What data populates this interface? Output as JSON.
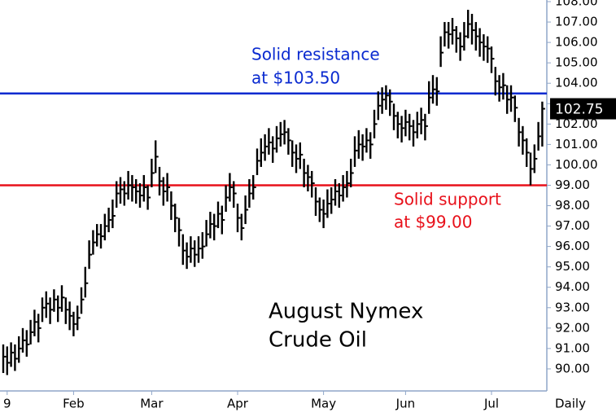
{
  "chart_data": {
    "type": "ohlc",
    "title": "August Nymex",
    "subtitle": "Crude Oil",
    "x_axis_label": "Daily",
    "ylim": [
      88.92,
      108.08
    ],
    "yticks": [
      {
        "value": 90,
        "label": "90.00"
      },
      {
        "value": 91,
        "label": "91.00"
      },
      {
        "value": 92,
        "label": "92.00"
      },
      {
        "value": 93,
        "label": "93.00"
      },
      {
        "value": 94,
        "label": "94.00"
      },
      {
        "value": 95,
        "label": "95.00"
      },
      {
        "value": 96,
        "label": "96.00"
      },
      {
        "value": 97,
        "label": "97.00"
      },
      {
        "value": 98,
        "label": "98.00"
      },
      {
        "value": 99,
        "label": "99.00"
      },
      {
        "value": 100,
        "label": "100.00"
      },
      {
        "value": 101,
        "label": "101.00"
      },
      {
        "value": 102,
        "label": "102.00"
      },
      {
        "value": 103,
        "label": "103.00"
      },
      {
        "value": 104,
        "label": "104.00"
      },
      {
        "value": 105,
        "label": "105.00"
      },
      {
        "value": 106,
        "label": "106.00"
      },
      {
        "value": 107,
        "label": "107.00"
      },
      {
        "value": 108,
        "label": "108.00"
      }
    ],
    "xticks": [
      {
        "value": 1,
        "label": "9"
      },
      {
        "value": 18,
        "label": "Feb"
      },
      {
        "value": 38,
        "label": "Mar"
      },
      {
        "value": 60,
        "label": "Apr"
      },
      {
        "value": 82,
        "label": "May"
      },
      {
        "value": 103,
        "label": "Jun"
      },
      {
        "value": 125,
        "label": "Jul"
      }
    ],
    "color": "#000000",
    "high": [
      91.2,
      91.1,
      91.3,
      91.2,
      91.6,
      92.0,
      91.9,
      92.4,
      92.9,
      92.7,
      93.5,
      93.8,
      93.5,
      93.9,
      93.6,
      94.1,
      93.5,
      93.3,
      92.8,
      93.1,
      94.0,
      95.0,
      96.3,
      96.8,
      97.1,
      97.1,
      97.6,
      97.9,
      98.3,
      99.2,
      99.4,
      99.2,
      99.7,
      99.5,
      99.3,
      99.1,
      99.5,
      99.0,
      100.3,
      101.2,
      99.9,
      99.4,
      99.6,
      98.7,
      98.1,
      97.4,
      96.6,
      96.2,
      96.5,
      96.3,
      96.5,
      96.7,
      97.3,
      97.7,
      97.6,
      98.2,
      98.0,
      99.0,
      99.6,
      99.2,
      98.1,
      97.6,
      98.5,
      99.3,
      99.5,
      100.8,
      101.3,
      101.5,
      101.8,
      101.4,
      101.9,
      102.1,
      102.2,
      101.8,
      101.2,
      101.0,
      101.1,
      100.3,
      100.0,
      99.7,
      98.9,
      98.4,
      98.3,
      98.8,
      98.9,
      99.3,
      99.1,
      99.5,
      99.7,
      100.3,
      101.4,
      101.7,
      101.5,
      101.8,
      101.6,
      102.7,
      103.6,
      103.8,
      103.9,
      103.7,
      103.0,
      102.6,
      102.4,
      102.7,
      102.5,
      102.2,
      102.6,
      102.8,
      102.5,
      104.1,
      104.4,
      104.3,
      106.3,
      107.0,
      107.0,
      107.2,
      106.8,
      106.5,
      107.0,
      107.6,
      107.4,
      107.0,
      106.7,
      106.4,
      106.3,
      105.8,
      104.8,
      104.4,
      104.5,
      103.9,
      103.9,
      103.4,
      102.3,
      101.9,
      101.3,
      100.6,
      101.0,
      102.1,
      103.1
    ],
    "low": [
      89.8,
      89.7,
      90.1,
      89.9,
      90.3,
      90.8,
      90.6,
      91.2,
      91.6,
      91.3,
      92.3,
      92.5,
      92.2,
      92.8,
      92.3,
      92.8,
      92.2,
      91.9,
      91.6,
      91.9,
      92.7,
      93.5,
      94.9,
      95.6,
      96.0,
      95.9,
      96.3,
      96.7,
      96.9,
      97.9,
      98.1,
      98.0,
      98.3,
      98.2,
      98.1,
      97.9,
      98.2,
      97.8,
      98.9,
      99.6,
      98.5,
      98.0,
      98.2,
      97.3,
      96.7,
      96.0,
      95.1,
      94.9,
      95.2,
      95.0,
      95.2,
      95.4,
      96.0,
      96.4,
      96.3,
      96.9,
      96.6,
      97.7,
      98.2,
      97.9,
      96.7,
      96.3,
      97.1,
      97.9,
      98.3,
      99.5,
      99.9,
      100.2,
      100.5,
      100.1,
      100.6,
      100.9,
      101.0,
      100.5,
      99.9,
      99.6,
      99.8,
      98.9,
      98.7,
      98.4,
      97.5,
      97.2,
      96.9,
      97.4,
      97.6,
      98.0,
      97.9,
      98.2,
      98.4,
      98.9,
      99.9,
      100.3,
      100.2,
      100.6,
      100.3,
      101.3,
      102.2,
      102.5,
      102.7,
      102.4,
      101.7,
      101.3,
      101.1,
      101.4,
      101.2,
      100.9,
      101.3,
      101.5,
      101.2,
      102.5,
      103.0,
      102.9,
      104.8,
      105.8,
      105.7,
      105.9,
      105.5,
      105.1,
      105.6,
      106.2,
      105.9,
      105.6,
      105.3,
      105.1,
      105.0,
      104.5,
      103.4,
      103.1,
      103.2,
      102.5,
      102.6,
      102.1,
      100.9,
      100.5,
      99.9,
      99.0,
      99.6,
      100.7,
      100.9
    ],
    "close": [
      90.6,
      90.3,
      90.8,
      90.5,
      91.0,
      91.4,
      91.2,
      91.8,
      92.3,
      92.0,
      93.0,
      93.2,
      92.9,
      93.4,
      93.0,
      93.5,
      92.9,
      92.6,
      92.2,
      92.5,
      93.4,
      94.2,
      95.6,
      96.2,
      96.6,
      96.5,
      97.0,
      97.3,
      97.5,
      98.6,
      98.8,
      98.6,
      99.0,
      98.9,
      98.7,
      98.5,
      98.9,
      98.4,
      99.6,
      100.4,
      99.2,
      98.7,
      98.9,
      98.0,
      97.4,
      96.8,
      95.8,
      95.5,
      95.9,
      95.6,
      95.9,
      96.0,
      96.6,
      97.1,
      97.0,
      97.6,
      97.3,
      98.4,
      98.9,
      98.6,
      97.4,
      96.9,
      97.8,
      98.6,
      98.9,
      100.2,
      100.6,
      100.9,
      101.1,
      100.8,
      101.3,
      101.5,
      101.6,
      101.2,
      100.6,
      100.3,
      100.5,
      99.6,
      99.4,
      99.1,
      98.2,
      97.8,
      97.6,
      98.1,
      98.3,
      98.7,
      98.5,
      98.9,
      99.1,
      99.6,
      100.7,
      101.0,
      100.9,
      101.2,
      101.0,
      102.0,
      102.9,
      103.2,
      103.4,
      103.1,
      102.4,
      102.0,
      101.8,
      102.1,
      101.9,
      101.6,
      102.0,
      102.2,
      101.9,
      103.3,
      103.7,
      103.6,
      105.5,
      106.5,
      106.4,
      106.6,
      106.2,
      105.8,
      106.3,
      106.9,
      106.6,
      106.3,
      106.0,
      105.8,
      105.7,
      105.2,
      104.1,
      103.8,
      103.9,
      103.2,
      103.3,
      102.8,
      101.6,
      101.2,
      100.6,
      99.8,
      100.3,
      101.4,
      102.75
    ],
    "last_label": "102.75",
    "levels": [
      {
        "value": 103.5,
        "color": "#0a2ad0",
        "lines": [
          "Solid resistance",
          "at $103.50"
        ]
      },
      {
        "value": 99,
        "color": "#e8101a",
        "lines": [
          "Solid support",
          "at $99.00"
        ]
      }
    ]
  }
}
